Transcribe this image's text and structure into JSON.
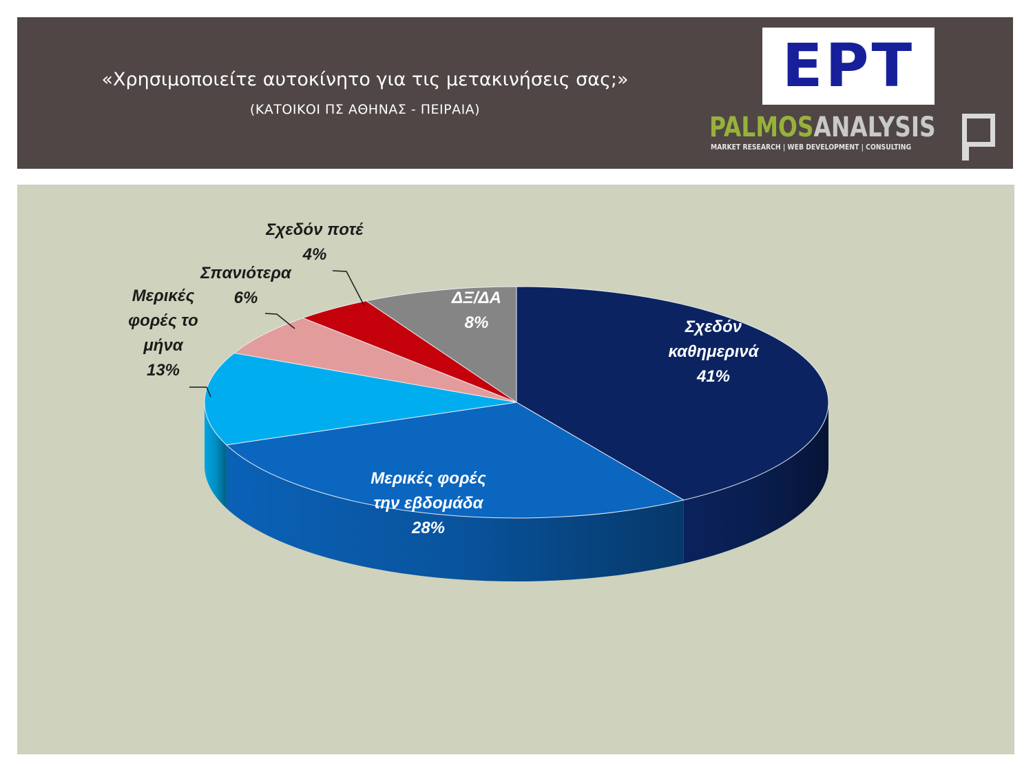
{
  "header": {
    "title": "«Χρησιμοποιείτε αυτοκίνητο για τις μετακινήσεις σας;»",
    "subtitle": "(ΚΑΤΟΙΚΟΙ ΠΣ ΑΘΗΝΑΣ - ΠΕΙΡΑΙΑ)",
    "background_color": "#4f4645"
  },
  "logos": {
    "ert": "ΕΡΤ",
    "palmos_name_part1": "PALMOS",
    "palmos_name_part2": "ANALYSIS",
    "palmos_tagline": "MARKET RESEARCH | WEB DEVELOPMENT | CONSULTING"
  },
  "chart_data": {
    "type": "pie",
    "style": "3d",
    "unit": "%",
    "background_color": "#cfd2bc",
    "slices": [
      {
        "label_lines": [
          "Σχεδόν",
          "καθημερινά"
        ],
        "value": 41,
        "value_label": "41%",
        "color": "#0b2461"
      },
      {
        "label_lines": [
          "Μερικές φορές",
          "την εβδομάδα"
        ],
        "value": 28,
        "value_label": "28%",
        "color": "#0b66c0"
      },
      {
        "label_lines": [
          "Μερικές",
          "φορές το",
          "μήνα"
        ],
        "value": 13,
        "value_label": "13%",
        "color": "#00aeef"
      },
      {
        "label_lines": [
          "Σπανιότερα"
        ],
        "value": 6,
        "value_label": "6%",
        "color": "#e39c9c"
      },
      {
        "label_lines": [
          "Σχεδόν ποτέ"
        ],
        "value": 4,
        "value_label": "4%",
        "color": "#c4000b"
      },
      {
        "label_lines": [
          "ΔΞ/ΔΑ"
        ],
        "value": 8,
        "value_label": "8%",
        "color": "#858585"
      }
    ]
  }
}
